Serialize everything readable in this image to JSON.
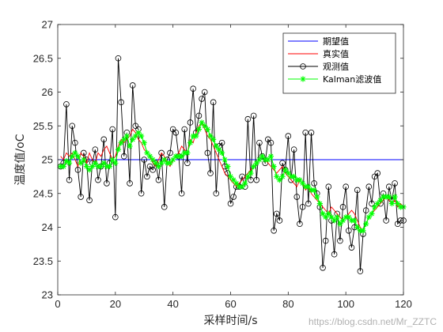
{
  "chart_data": {
    "type": "line",
    "xlabel": "采样时间/s",
    "ylabel": "温度值/oC",
    "xlim": [
      0,
      120
    ],
    "ylim": [
      23,
      27
    ],
    "xticks": [
      0,
      20,
      40,
      60,
      80,
      100,
      120
    ],
    "yticks": [
      23,
      23.5,
      24,
      24.5,
      25,
      25.5,
      26,
      26.5,
      27
    ],
    "xtick_labels": [
      "0",
      "20",
      "40",
      "60",
      "80",
      "100",
      "120"
    ],
    "ytick_labels": [
      "23",
      "23.5",
      "24",
      "24.5",
      "25",
      "25.5",
      "26",
      "26.5",
      "27"
    ],
    "grid": false,
    "legend_position": "top-right",
    "x": [
      1,
      2,
      3,
      4,
      5,
      6,
      7,
      8,
      9,
      10,
      11,
      12,
      13,
      14,
      15,
      16,
      17,
      18,
      19,
      20,
      21,
      22,
      23,
      24,
      25,
      26,
      27,
      28,
      29,
      30,
      31,
      32,
      33,
      34,
      35,
      36,
      37,
      38,
      39,
      40,
      41,
      42,
      43,
      44,
      45,
      46,
      47,
      48,
      49,
      50,
      51,
      52,
      53,
      54,
      55,
      56,
      57,
      58,
      59,
      60,
      61,
      62,
      63,
      64,
      65,
      66,
      67,
      68,
      69,
      70,
      71,
      72,
      73,
      74,
      75,
      76,
      77,
      78,
      79,
      80,
      81,
      82,
      83,
      84,
      85,
      86,
      87,
      88,
      89,
      90,
      91,
      92,
      93,
      94,
      95,
      96,
      97,
      98,
      99,
      100,
      101,
      102,
      103,
      104,
      105,
      106,
      107,
      108,
      109,
      110,
      111,
      112,
      113,
      114,
      115,
      116,
      117,
      118,
      119,
      120
    ],
    "series": [
      {
        "name": "期望值",
        "color": "#0000ff",
        "marker": "none",
        "values": [
          25,
          25,
          25,
          25,
          25,
          25,
          25,
          25,
          25,
          25,
          25,
          25,
          25,
          25,
          25,
          25,
          25,
          25,
          25,
          25,
          25,
          25,
          25,
          25,
          25,
          25,
          25,
          25,
          25,
          25,
          25,
          25,
          25,
          25,
          25,
          25,
          25,
          25,
          25,
          25,
          25,
          25,
          25,
          25,
          25,
          25,
          25,
          25,
          25,
          25,
          25,
          25,
          25,
          25,
          25,
          25,
          25,
          25,
          25,
          25,
          25,
          25,
          25,
          25,
          25,
          25,
          25,
          25,
          25,
          25,
          25,
          25,
          25,
          25,
          25,
          25,
          25,
          25,
          25,
          25,
          25,
          25,
          25,
          25,
          25,
          25,
          25,
          25,
          25,
          25,
          25,
          25,
          25,
          25,
          25,
          25,
          25,
          25,
          25,
          25,
          25,
          25,
          25,
          25,
          25,
          25,
          25,
          25,
          25,
          25,
          25,
          25,
          25,
          25,
          25,
          25,
          25,
          25,
          25,
          25
        ]
      },
      {
        "name": "真实值",
        "color": "#ff0000",
        "marker": "none",
        "values": [
          25.05,
          25.0,
          25.1,
          25.05,
          25.1,
          25.0,
          24.9,
          25.1,
          25.05,
          24.95,
          25.1,
          25.0,
          24.95,
          25.1,
          25.05,
          25.15,
          25.2,
          25.1,
          25.0,
          25.05,
          25.2,
          25.3,
          25.25,
          25.3,
          25.35,
          25.45,
          25.4,
          25.3,
          25.25,
          25.15,
          25.1,
          25.05,
          24.95,
          24.9,
          25.0,
          25.1,
          25.05,
          24.95,
          24.9,
          25.0,
          25.05,
          25.1,
          25.2,
          25.15,
          25.1,
          25.3,
          25.25,
          25.4,
          25.5,
          25.55,
          25.45,
          25.35,
          25.3,
          25.2,
          25.1,
          25.0,
          24.9,
          24.8,
          24.75,
          24.7,
          24.65,
          24.6,
          24.65,
          24.7,
          24.75,
          24.8,
          24.85,
          24.9,
          24.95,
          25.0,
          25.05,
          25.0,
          24.95,
          24.9,
          24.85,
          24.8,
          24.85,
          24.9,
          24.8,
          24.75,
          24.7,
          24.65,
          24.6,
          24.7,
          24.65,
          24.55,
          24.6,
          24.5,
          24.45,
          24.4,
          24.35,
          24.3,
          24.25,
          24.2,
          24.3,
          24.25,
          24.2,
          24.15,
          24.1,
          24.15,
          24.2,
          24.25,
          24.2,
          24.1,
          24.0,
          23.95,
          24.05,
          24.15,
          24.2,
          24.25,
          24.3,
          24.35,
          24.4,
          24.45,
          24.4,
          24.35,
          24.4,
          24.3,
          24.35,
          24.3
        ]
      },
      {
        "name": "观测值",
        "color": "#000000",
        "marker": "circle",
        "values": [
          24.9,
          24.95,
          25.82,
          24.7,
          25.5,
          25.25,
          24.85,
          24.45,
          25.1,
          25.0,
          24.4,
          24.95,
          25.15,
          24.7,
          24.9,
          25.3,
          24.65,
          24.95,
          25.45,
          24.15,
          26.5,
          25.85,
          25.05,
          25.4,
          24.65,
          26.1,
          25.5,
          25.45,
          24.5,
          25.0,
          24.75,
          24.9,
          24.85,
          24.95,
          24.7,
          25.1,
          24.3,
          25.0,
          25.1,
          25.45,
          25.4,
          25.05,
          24.5,
          25.45,
          24.95,
          25.55,
          26.05,
          25.4,
          25.65,
          25.9,
          26.0,
          25.1,
          24.8,
          25.85,
          24.5,
          25.2,
          25.25,
          24.9,
          24.8,
          24.35,
          24.45,
          24.6,
          24.6,
          24.75,
          24.6,
          25.6,
          24.7,
          25.65,
          24.7,
          25.25,
          25.05,
          24.95,
          25.3,
          25.25,
          23.95,
          24.2,
          24.1,
          24.95,
          24.85,
          25.35,
          24.7,
          25.15,
          24.45,
          24.05,
          24.3,
          25.4,
          24.35,
          25.4,
          24.65,
          24.5,
          24.3,
          23.4,
          23.8,
          24.6,
          24.1,
          23.6,
          24.2,
          23.8,
          24.3,
          24.6,
          23.95,
          23.7,
          24.0,
          24.55,
          23.35,
          23.9,
          24.25,
          24.6,
          24.35,
          24.75,
          24.8,
          24.35,
          24.5,
          24.1,
          24.6,
          24.4,
          24.65,
          24.05,
          24.1,
          24.1
        ]
      },
      {
        "name": "Kalman滤波值",
        "color": "#00ff00",
        "marker": "star",
        "values": [
          24.9,
          24.9,
          24.98,
          24.95,
          25.05,
          25.1,
          25.05,
          24.95,
          25.0,
          24.9,
          24.85,
          24.9,
          24.95,
          24.9,
          24.9,
          24.95,
          24.9,
          24.9,
          25.0,
          24.95,
          25.15,
          25.25,
          25.3,
          25.35,
          25.2,
          25.3,
          25.35,
          25.4,
          25.35,
          25.25,
          25.1,
          25.05,
          25.0,
          24.95,
          24.9,
          24.95,
          25.0,
          24.95,
          24.95,
          25.0,
          25.05,
          25.05,
          25.05,
          25.1,
          25.1,
          25.25,
          25.35,
          25.35,
          25.45,
          25.55,
          25.5,
          25.45,
          25.35,
          25.3,
          25.2,
          25.15,
          25.1,
          25.0,
          24.9,
          24.75,
          24.7,
          24.65,
          24.6,
          24.6,
          24.65,
          24.75,
          24.8,
          24.9,
          24.95,
          25.0,
          25.05,
          25.0,
          25.0,
          25.05,
          24.9,
          24.75,
          24.7,
          24.75,
          24.85,
          24.8,
          24.75,
          24.75,
          24.7,
          24.7,
          24.65,
          24.6,
          24.6,
          24.55,
          24.55,
          24.45,
          24.35,
          24.2,
          24.15,
          24.2,
          24.15,
          24.1,
          24.15,
          24.05,
          24.1,
          24.15,
          24.15,
          24.1,
          24.1,
          24.0,
          23.95,
          23.95,
          24.05,
          24.15,
          24.2,
          24.3,
          24.35,
          24.4,
          24.45,
          24.45,
          24.45,
          24.35,
          24.45,
          24.35,
          24.3,
          24.3
        ]
      }
    ]
  },
  "watermark": "https://blog.csdn.net/Mr_ZZTC"
}
